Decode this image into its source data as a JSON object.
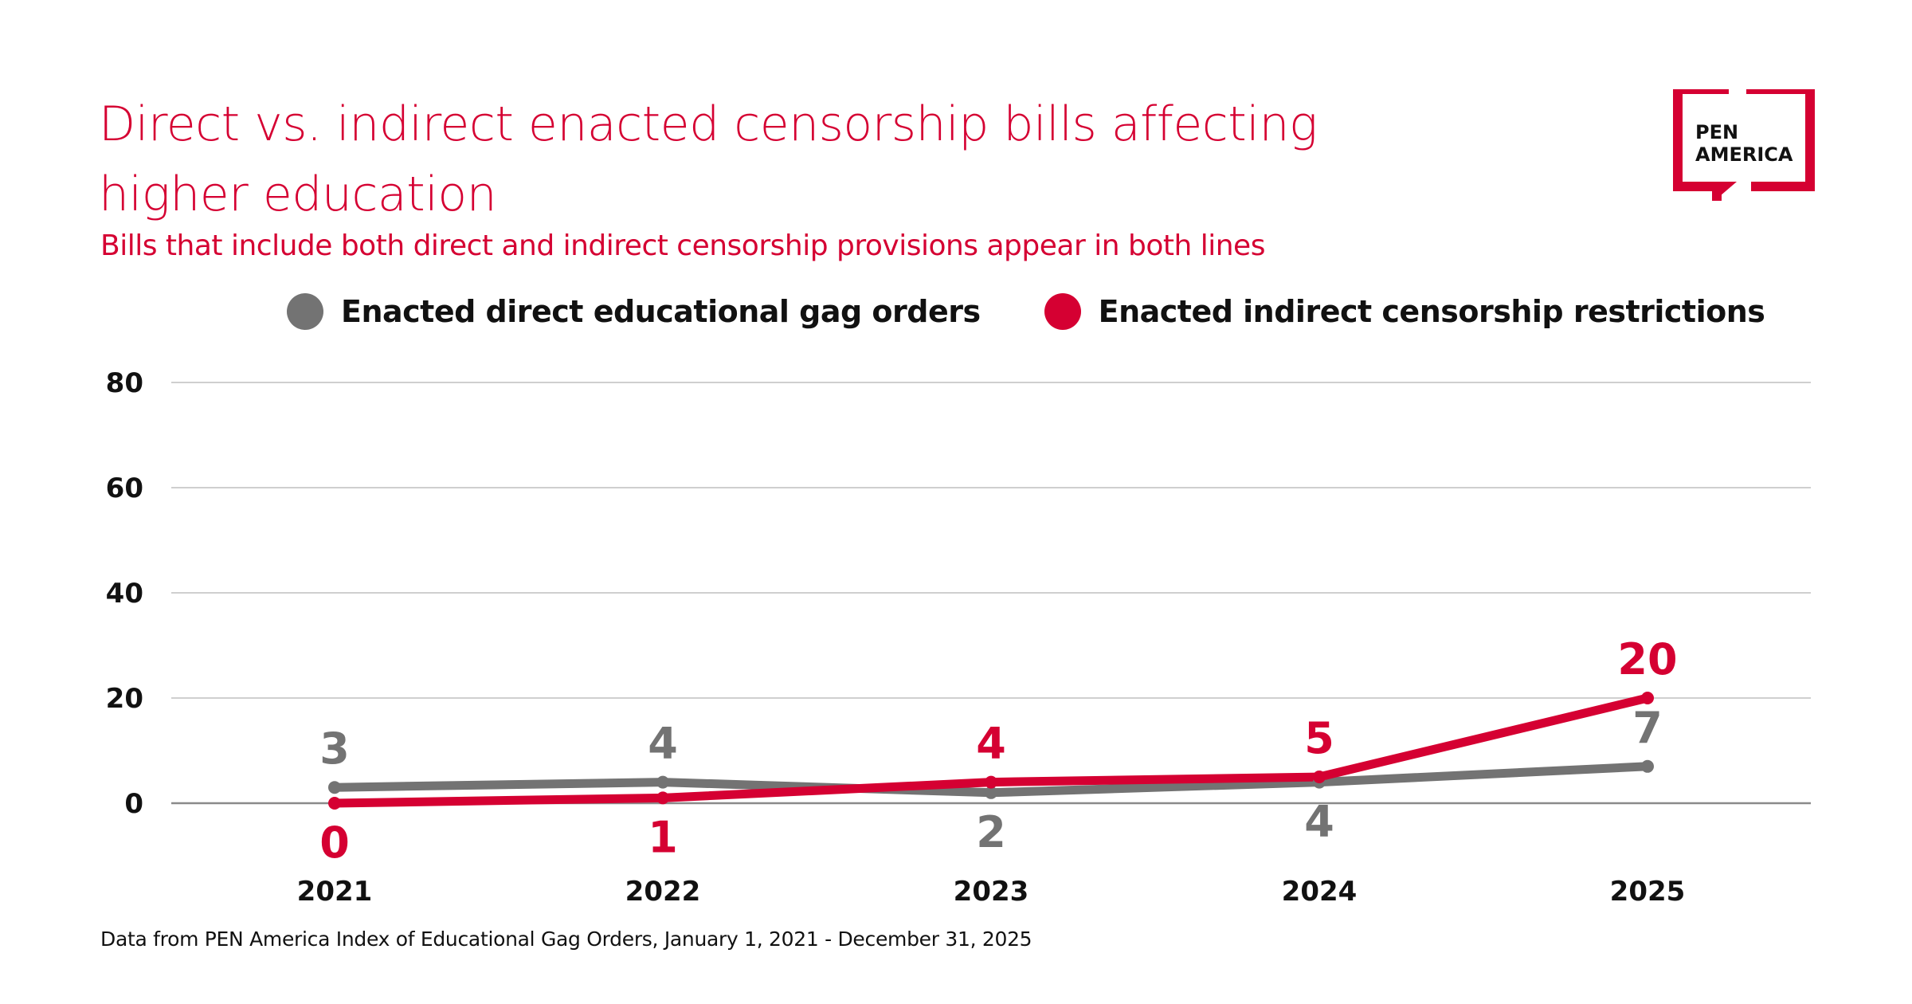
{
  "header": {
    "title": "Direct vs. indirect enacted censorship bills affecting higher education",
    "subtitle": "Bills that include both direct and indirect censorship provisions appear in both lines"
  },
  "logo": {
    "line1": "PEN",
    "line2": "AMERICA",
    "icon": "speech-bubble-bracket-icon",
    "color": "#d50032"
  },
  "footer": {
    "source": "Data from PEN America Index of Educational Gag Orders, January 1, 2021 - December 31, 2025"
  },
  "chart_data": {
    "type": "line",
    "title": "Direct vs. indirect enacted censorship bills affecting higher education",
    "subtitle": "Bills that include both direct and indirect censorship provisions appear in both lines",
    "xlabel": "",
    "ylabel": "",
    "x": [
      "2021",
      "2022",
      "2023",
      "2024",
      "2025"
    ],
    "ylim": [
      0,
      80
    ],
    "yticks": [
      0,
      20,
      40,
      60,
      80
    ],
    "grid": true,
    "legend_position": "top",
    "series": [
      {
        "name": "Enacted direct educational gag orders",
        "color": "#737373",
        "values": [
          3,
          4,
          2,
          4,
          7
        ],
        "label_positions": [
          "above",
          "above",
          "below",
          "below",
          "above"
        ]
      },
      {
        "name": "Enacted indirect censorship restrictions",
        "color": "#d50032",
        "values": [
          0,
          1,
          4,
          5,
          20
        ],
        "label_positions": [
          "below",
          "below",
          "above",
          "above",
          "above"
        ]
      }
    ],
    "source": "Data from PEN America Index of Educational Gag Orders, January 1, 2021 - December 31, 2025"
  }
}
